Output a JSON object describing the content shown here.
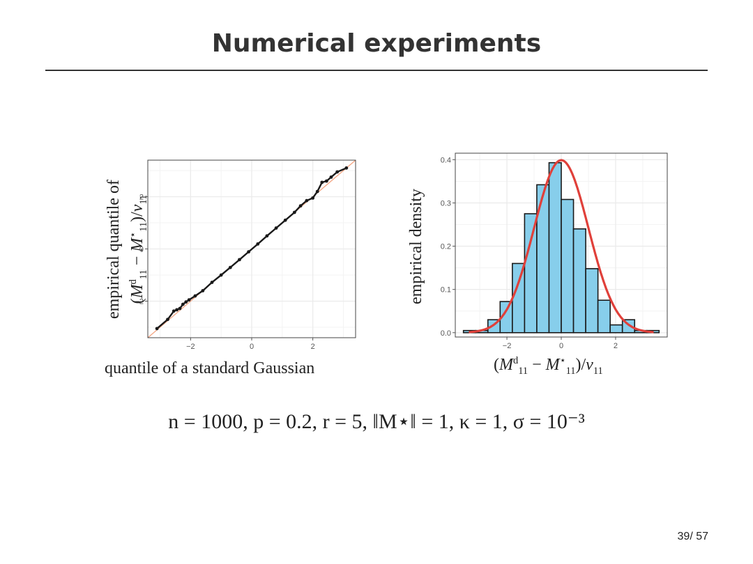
{
  "slide": {
    "title": "Numerical experiments",
    "page_number": "39/ 57"
  },
  "params_text": "n = 1000, p = 0.2, r = 5, ‖M⋆‖ = 1, κ = 1, σ = 10⁻³",
  "chart_data": [
    {
      "type": "scatter",
      "title": "",
      "xlabel": "quantile of a standard Gaussian",
      "ylabel": "empirical quantile of (M11^d − M11⋆)/v11",
      "ylabel_line1": "empirical quantile of",
      "ylabel_line2": "(M11^d − M11⋆)/v11",
      "xlim": [
        -3.4,
        3.4
      ],
      "ylim": [
        -3.4,
        3.4
      ],
      "x_ticks": [
        -2,
        0,
        2
      ],
      "y_ticks": [
        -2,
        0,
        2
      ],
      "x_tick_labels": [
        "−2",
        "0",
        "2"
      ],
      "y_tick_labels": [
        "−2",
        "0",
        "2"
      ],
      "reference_line": "y = x",
      "colors": {
        "points": "#1a1a1a",
        "reference": "#f4a582",
        "grid": "#ebebeb",
        "panel_border": "#444444"
      },
      "points": [
        [
          -3.1,
          -3.05
        ],
        [
          -2.75,
          -2.7
        ],
        [
          -2.55,
          -2.38
        ],
        [
          -2.45,
          -2.33
        ],
        [
          -2.35,
          -2.28
        ],
        [
          -2.25,
          -2.12
        ],
        [
          -2.15,
          -2.03
        ],
        [
          -2.05,
          -1.95
        ],
        [
          -1.85,
          -1.8
        ],
        [
          -1.6,
          -1.6
        ],
        [
          -1.3,
          -1.28
        ],
        [
          -1.0,
          -1.0
        ],
        [
          -0.7,
          -0.71
        ],
        [
          -0.4,
          -0.41
        ],
        [
          -0.1,
          -0.11
        ],
        [
          0.2,
          0.19
        ],
        [
          0.5,
          0.5
        ],
        [
          0.8,
          0.8
        ],
        [
          1.1,
          1.1
        ],
        [
          1.4,
          1.4
        ],
        [
          1.6,
          1.65
        ],
        [
          1.8,
          1.85
        ],
        [
          2.0,
          1.95
        ],
        [
          2.15,
          2.2
        ],
        [
          2.3,
          2.55
        ],
        [
          2.45,
          2.6
        ],
        [
          2.6,
          2.75
        ],
        [
          2.8,
          2.95
        ],
        [
          3.1,
          3.1
        ]
      ]
    },
    {
      "type": "bar",
      "subtype": "histogram",
      "title": "",
      "xlabel": "(M11^d − M11⋆)/v11",
      "ylabel": "empirical density",
      "xlim": [
        -3.9,
        3.9
      ],
      "ylim": [
        -0.01,
        0.415
      ],
      "x_ticks": [
        -2,
        0,
        2
      ],
      "y_ticks": [
        0.0,
        0.1,
        0.2,
        0.3,
        0.4
      ],
      "x_tick_labels": [
        "−2",
        "0",
        "2"
      ],
      "y_tick_labels": [
        "0.0",
        "0.1",
        "0.2",
        "0.3",
        "0.4"
      ],
      "bin_edges": [
        -3.6,
        -3.15,
        -2.7,
        -2.25,
        -1.8,
        -1.35,
        -0.9,
        -0.45,
        0.0,
        0.45,
        0.9,
        1.35,
        1.8,
        2.25,
        2.7,
        3.15,
        3.6
      ],
      "values": [
        0.005,
        0.005,
        0.03,
        0.072,
        0.16,
        0.275,
        0.342,
        0.393,
        0.308,
        0.24,
        0.148,
        0.075,
        0.018,
        0.03,
        0.005,
        0.005
      ],
      "overlay": "standard normal density",
      "colors": {
        "bars": "#87ceeb",
        "bar_edge": "#1a1a1a",
        "curve": "#e0403a",
        "grid": "#ebebeb",
        "panel_border": "#444444"
      }
    }
  ]
}
